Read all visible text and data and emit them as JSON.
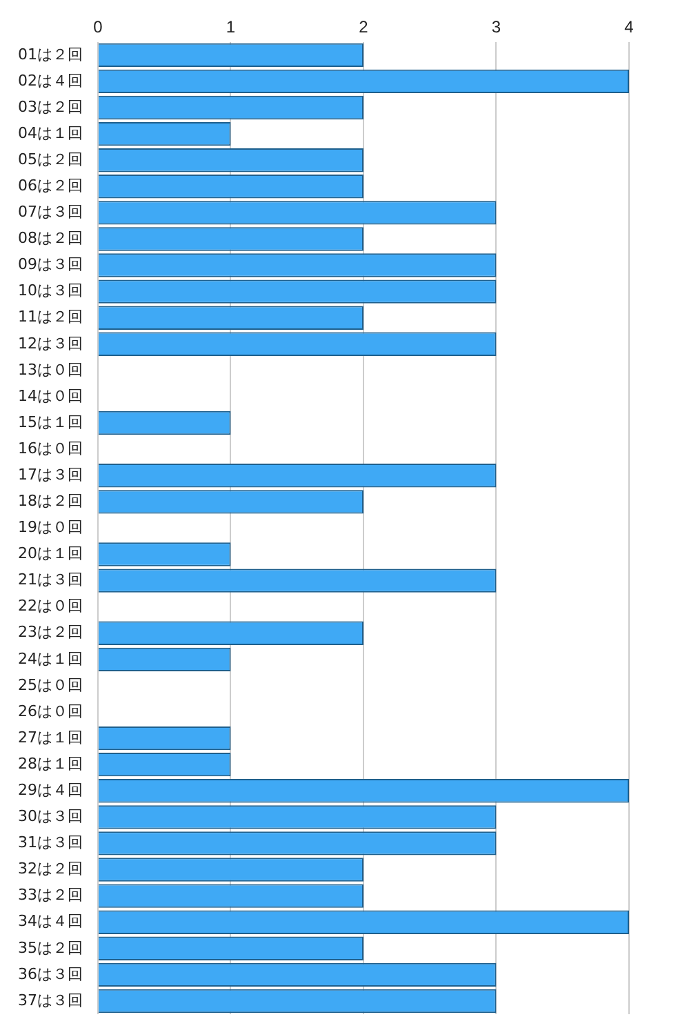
{
  "chart_data": {
    "type": "bar",
    "orientation": "horizontal",
    "categories": [
      "01は２回",
      "02は４回",
      "03は２回",
      "04は１回",
      "05は２回",
      "06は２回",
      "07は３回",
      "08は２回",
      "09は３回",
      "10は３回",
      "11は２回",
      "12は３回",
      "13は０回",
      "14は０回",
      "15は１回",
      "16は０回",
      "17は３回",
      "18は２回",
      "19は０回",
      "20は１回",
      "21は３回",
      "22は０回",
      "23は２回",
      "24は１回",
      "25は０回",
      "26は０回",
      "27は１回",
      "28は１回",
      "29は４回",
      "30は３回",
      "31は３回",
      "32は２回",
      "33は２回",
      "34は４回",
      "35は２回",
      "36は３回",
      "37は３回"
    ],
    "values": [
      2,
      4,
      2,
      1,
      2,
      2,
      3,
      2,
      3,
      3,
      2,
      3,
      0,
      0,
      1,
      0,
      3,
      2,
      0,
      1,
      3,
      0,
      2,
      1,
      0,
      0,
      1,
      1,
      4,
      3,
      3,
      2,
      2,
      4,
      2,
      3,
      3
    ],
    "color": "#3fa9f5",
    "xlim": [
      0,
      4
    ],
    "xticks": [
      0,
      1,
      2,
      3,
      4
    ],
    "grid": "x",
    "legend": false
  }
}
